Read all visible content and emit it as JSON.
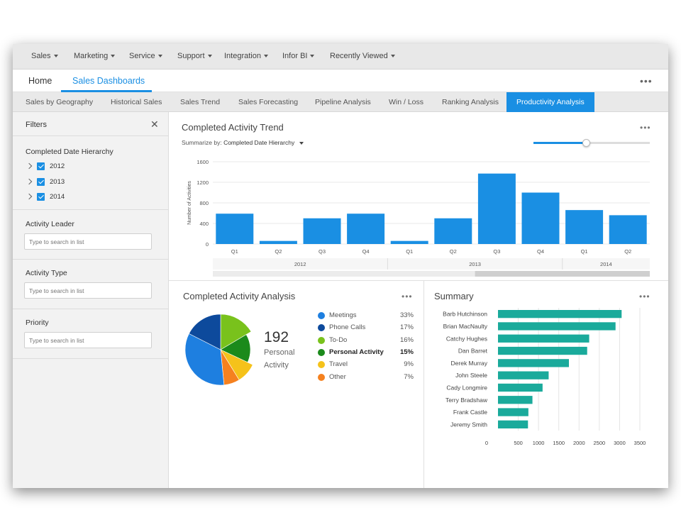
{
  "topnav": [
    {
      "label": "Sales",
      "caret": true
    },
    {
      "label": "Marketing",
      "caret": true
    },
    {
      "label": "Service",
      "caret": true
    },
    {
      "label": "Support",
      "caret": true
    },
    {
      "label": "Integration",
      "caret": true
    },
    {
      "label": "Infor BI",
      "caret": true
    },
    {
      "label": "Recently Viewed",
      "caret": true
    }
  ],
  "tabs": [
    {
      "label": "Home",
      "active": false
    },
    {
      "label": "Sales Dashboards",
      "active": true
    }
  ],
  "more_glyph": "•••",
  "subtabs": [
    {
      "label": "Sales by Geography",
      "active": false
    },
    {
      "label": "Historical Sales",
      "active": false
    },
    {
      "label": "Sales Trend",
      "active": false
    },
    {
      "label": "Sales Forecasting",
      "active": false
    },
    {
      "label": "Pipeline Analysis",
      "active": false
    },
    {
      "label": "Win / Loss",
      "active": false
    },
    {
      "label": "Ranking Analysis",
      "active": false
    },
    {
      "label": "Productivity Analysis",
      "active": true
    }
  ],
  "filters": {
    "title": "Filters",
    "close_glyph": "✕",
    "date_hierarchy": {
      "title": "Completed Date Hierarchy",
      "years": [
        {
          "label": "2012",
          "checked": true
        },
        {
          "label": "2013",
          "checked": true
        },
        {
          "label": "2014",
          "checked": true
        }
      ]
    },
    "activity_leader": {
      "title": "Activity Leader",
      "placeholder": "Type to search in list"
    },
    "activity_type": {
      "title": "Activity Type",
      "placeholder": "Type to search in list"
    },
    "priority": {
      "title": "Priority",
      "placeholder": "Type to search in list"
    }
  },
  "trend": {
    "title": "Completed Activity Trend",
    "summarize_prefix": "Summarize by:",
    "summarize_value": "Completed Date Hierarchy",
    "slider_level": 0.45,
    "bar_color": "#1a8fe3"
  },
  "analysis": {
    "title": "Completed Activity Analysis",
    "center_value": "192",
    "center_label_line1": "Personal",
    "center_label_line2": "Activity",
    "legend": [
      {
        "label": "Meetings",
        "pct": "33%",
        "color": "#1e7fe0",
        "bold": false
      },
      {
        "label": "Phone Calls",
        "pct": "17%",
        "color": "#0d4a9c",
        "bold": false
      },
      {
        "label": "To-Do",
        "pct": "16%",
        "color": "#79c21c",
        "bold": false
      },
      {
        "label": "Personal Activity",
        "pct": "15%",
        "color": "#1b8a1b",
        "bold": true
      },
      {
        "label": "Travel",
        "pct": "9%",
        "color": "#f5c21a",
        "bold": false
      },
      {
        "label": "Other",
        "pct": "7%",
        "color": "#f5811f",
        "bold": false
      }
    ]
  },
  "summary": {
    "title": "Summary",
    "bar_color": "#1aaa9b"
  },
  "chart_data": [
    {
      "type": "bar",
      "title": "Completed Activity Trend",
      "ylabel": "Number of Activities",
      "xlabel": "",
      "ylim": [
        0,
        1600
      ],
      "yticks": [
        0,
        400,
        800,
        1200,
        1600
      ],
      "categories": [
        "Q1",
        "Q2",
        "Q3",
        "Q4",
        "Q1",
        "Q2",
        "Q3",
        "Q4",
        "Q1",
        "Q2"
      ],
      "groups": [
        {
          "label": "2012",
          "count": 4
        },
        {
          "label": "2013",
          "count": 4
        },
        {
          "label": "2014",
          "count": 2
        }
      ],
      "values": [
        590,
        60,
        500,
        590,
        60,
        500,
        1370,
        1000,
        660,
        560
      ],
      "grid": true
    },
    {
      "type": "pie",
      "title": "Completed Activity Analysis",
      "labels": [
        "Meetings",
        "Phone Calls",
        "To-Do",
        "Personal Activity",
        "Travel",
        "Other"
      ],
      "values": [
        33,
        17,
        16,
        15,
        9,
        7
      ]
    },
    {
      "type": "bar",
      "orientation": "horizontal",
      "title": "Summary",
      "categories": [
        "Barb Hutchinson",
        "Brian MacNaulty",
        "Catchy Hughes",
        "Dan Barret",
        "Derek Murray",
        "John Steele",
        "Cady Longmire",
        "Terry Bradshaw",
        "Frank Castle",
        "Jeremy Smith"
      ],
      "values": [
        3050,
        2900,
        2250,
        2200,
        1750,
        1250,
        1100,
        850,
        750,
        740
      ],
      "xlim": [
        0,
        3500
      ],
      "xticks": [
        0,
        500,
        1000,
        1500,
        2000,
        2500,
        3000,
        3500
      ],
      "grid": true
    }
  ]
}
